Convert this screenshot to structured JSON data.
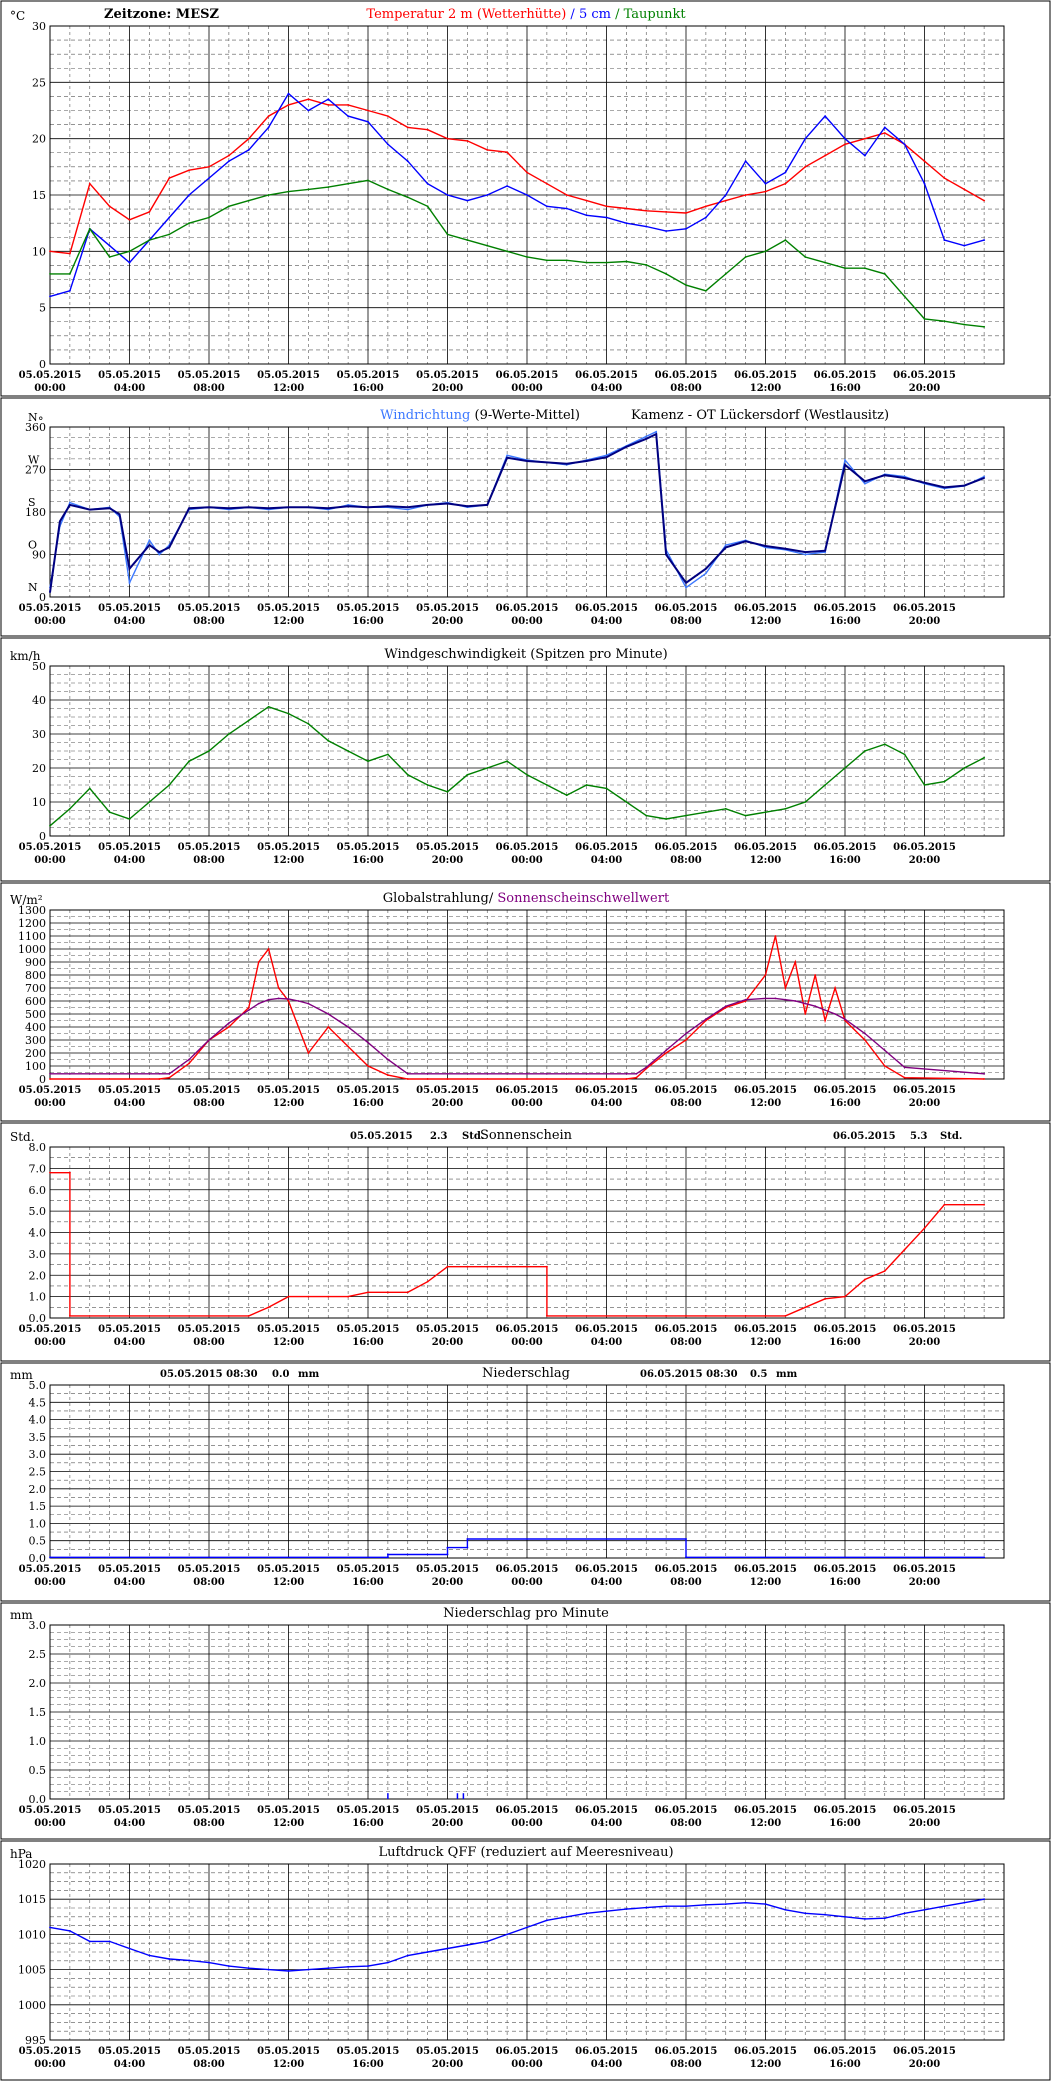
{
  "x_ticks": [
    {
      "date": "05.05.2015",
      "time": "00:00"
    },
    {
      "date": "05.05.2015",
      "time": "04:00"
    },
    {
      "date": "05.05.2015",
      "time": "08:00"
    },
    {
      "date": "05.05.2015",
      "time": "12:00"
    },
    {
      "date": "05.05.2015",
      "time": "16:00"
    },
    {
      "date": "05.05.2015",
      "time": "20:00"
    },
    {
      "date": "06.05.2015",
      "time": "00:00"
    },
    {
      "date": "06.05.2015",
      "time": "04:00"
    },
    {
      "date": "06.05.2015",
      "time": "08:00"
    },
    {
      "date": "06.05.2015",
      "time": "12:00"
    },
    {
      "date": "06.05.2015",
      "time": "16:00"
    },
    {
      "date": "06.05.2015",
      "time": "20:00"
    }
  ],
  "colors": {
    "red": "#ff0000",
    "blue": "#0000ff",
    "green": "#008000",
    "navy": "#000080",
    "lightblue": "#3c78ff",
    "purple": "#800080",
    "black": "#000000"
  },
  "chart_data": [
    {
      "id": "temp",
      "type": "line",
      "unit": "°C",
      "ylim": [
        0,
        30
      ],
      "yticks": [
        "0",
        "5",
        "10",
        "15",
        "20",
        "25",
        "30"
      ],
      "header_left": "Zeitzone: MESZ",
      "title_parts": [
        {
          "text": "Temperatur 2 m (Wetterhütte)",
          "color": "#ff0000"
        },
        {
          "text": " / ",
          "color": "#0000ff"
        },
        {
          "text": "5 cm",
          "color": "#0000ff"
        },
        {
          "text": " / ",
          "color": "#008000"
        },
        {
          "text": "Taupunkt",
          "color": "#008000"
        }
      ],
      "x_hours": [
        0,
        1,
        2,
        3,
        4,
        5,
        6,
        7,
        8,
        9,
        10,
        11,
        12,
        13,
        14,
        15,
        16,
        17,
        18,
        19,
        20,
        21,
        22,
        23,
        24,
        25,
        26,
        27,
        28,
        29,
        30,
        31,
        32,
        33,
        34,
        35,
        36,
        37,
        38,
        39,
        40,
        41,
        42,
        43,
        44,
        45,
        46,
        47
      ],
      "series": [
        {
          "name": "Temperatur 2 m (Wetterhütte)",
          "color": "#ff0000",
          "values": [
            10,
            9.8,
            16,
            14,
            12.8,
            13.5,
            16.5,
            17.2,
            17.5,
            18.5,
            20,
            22,
            23,
            23.5,
            23,
            23,
            22.5,
            22,
            21,
            20.8,
            20,
            19.8,
            19,
            18.8,
            17,
            16,
            15,
            14.5,
            14,
            13.8,
            13.6,
            13.5,
            13.4,
            14,
            14.5,
            15,
            15.3,
            16,
            17.5,
            18.5,
            19.5,
            20,
            20.5,
            19.5,
            18,
            16.5,
            15.5,
            14.5
          ]
        },
        {
          "name": "5 cm",
          "color": "#0000ff",
          "values": [
            6,
            6.5,
            12,
            10.5,
            9,
            11,
            13,
            15,
            16.5,
            18,
            19,
            21,
            24,
            22.5,
            23.5,
            22,
            21.5,
            19.5,
            18,
            16,
            15,
            14.5,
            15,
            15.8,
            15,
            14,
            13.8,
            13.2,
            13,
            12.5,
            12.2,
            11.8,
            12,
            13,
            15,
            18,
            16,
            17,
            20,
            22,
            20,
            18.5,
            21,
            19.5,
            16,
            11,
            10.5,
            11
          ]
        },
        {
          "name": "Taupunkt",
          "color": "#008000",
          "values": [
            8,
            8,
            12,
            9.5,
            10,
            11,
            11.5,
            12.5,
            13,
            14,
            14.5,
            15,
            15.3,
            15.5,
            15.7,
            16,
            16.3,
            15.5,
            14.8,
            14,
            11.5,
            11,
            10.5,
            10,
            9.5,
            9.2,
            9.2,
            9,
            9,
            9.1,
            8.8,
            8,
            7,
            6.5,
            8,
            9.5,
            10,
            11,
            9.5,
            9,
            8.5,
            8.5,
            8,
            6,
            4,
            3.8,
            3.5,
            3.3
          ]
        }
      ]
    },
    {
      "id": "winddir",
      "type": "line",
      "ylim": [
        0,
        360
      ],
      "yticks": [
        "0",
        "90",
        "180",
        "270",
        "360"
      ],
      "y_compass": [
        "N",
        "O",
        "S",
        "W",
        "N"
      ],
      "unit_extra": "°",
      "title_parts": [
        {
          "text": "Windrichtung",
          "color": "#3c78ff"
        },
        {
          "text": " (9-Werte-Mittel)",
          "color": "#000000"
        }
      ],
      "title_right": "Kamenz - OT Lückersdorf (Westlausitz)",
      "x_hours": [
        0,
        0.5,
        1,
        2,
        3,
        3.5,
        4,
        5,
        5.5,
        6,
        7,
        8,
        9,
        10,
        11,
        12,
        13,
        14,
        15,
        16,
        17,
        18,
        19,
        20,
        21,
        22,
        23,
        24,
        25,
        26,
        27,
        28,
        29,
        30,
        30.5,
        31,
        32,
        33,
        34,
        35,
        36,
        37,
        38,
        39,
        40,
        41,
        42,
        43,
        44,
        45,
        46,
        47
      ],
      "series": [
        {
          "name": "Windrichtung",
          "color": "#3c78ff",
          "values": [
            20,
            150,
            200,
            185,
            190,
            170,
            30,
            120,
            90,
            110,
            185,
            190,
            185,
            190,
            185,
            190,
            190,
            185,
            195,
            190,
            190,
            185,
            195,
            200,
            190,
            195,
            300,
            290,
            285,
            280,
            290,
            300,
            320,
            340,
            350,
            100,
            20,
            50,
            110,
            120,
            105,
            100,
            90,
            95,
            290,
            240,
            260,
            255,
            240,
            230,
            235,
            255
          ]
        },
        {
          "name": "9-Werte-Mittel",
          "color": "#000080",
          "values": [
            10,
            160,
            195,
            185,
            188,
            175,
            60,
            110,
            95,
            105,
            188,
            190,
            188,
            190,
            188,
            190,
            190,
            188,
            192,
            190,
            192,
            190,
            195,
            198,
            192,
            195,
            295,
            288,
            285,
            282,
            288,
            296,
            318,
            335,
            345,
            90,
            30,
            60,
            105,
            118,
            108,
            102,
            95,
            98,
            280,
            245,
            258,
            252,
            242,
            232,
            236,
            252
          ]
        }
      ]
    },
    {
      "id": "windspeed",
      "type": "line",
      "unit": "km/h",
      "ylim": [
        0,
        50
      ],
      "yticks": [
        "0",
        "10",
        "20",
        "30",
        "40",
        "50"
      ],
      "title_parts": [
        {
          "text": "Windgeschwindigkeit (Spitzen pro Minute)",
          "color": "#000000"
        }
      ],
      "x_hours": [
        0,
        1,
        2,
        3,
        4,
        5,
        6,
        7,
        8,
        9,
        10,
        11,
        12,
        13,
        14,
        15,
        16,
        17,
        18,
        19,
        20,
        21,
        22,
        23,
        24,
        25,
        26,
        27,
        28,
        29,
        30,
        31,
        32,
        33,
        34,
        35,
        36,
        37,
        38,
        39,
        40,
        41,
        42,
        43,
        44,
        45,
        46,
        47
      ],
      "series": [
        {
          "name": "Windgeschwindigkeit",
          "color": "#008000",
          "values": [
            3,
            8,
            14,
            7,
            5,
            10,
            15,
            22,
            25,
            30,
            34,
            38,
            36,
            33,
            28,
            25,
            22,
            24,
            18,
            15,
            13,
            18,
            20,
            22,
            18,
            15,
            12,
            15,
            14,
            10,
            6,
            5,
            6,
            7,
            8,
            6,
            7,
            8,
            10,
            15,
            20,
            25,
            27,
            24,
            15,
            16,
            20,
            23
          ]
        }
      ]
    },
    {
      "id": "radiation",
      "type": "line",
      "unit": "W/m²",
      "ylim": [
        0,
        1300
      ],
      "yticks": [
        "0",
        "100",
        "200",
        "300",
        "400",
        "500",
        "600",
        "700",
        "800",
        "900",
        "1000",
        "1100",
        "1200",
        "1300"
      ],
      "title_parts": [
        {
          "text": "Globalstrahlung/",
          "color": "#000000"
        },
        {
          "text": " Sonnenscheinschwellwert",
          "color": "#800080"
        }
      ],
      "x_hours": [
        0,
        5.5,
        6,
        7,
        8,
        9,
        10,
        10.5,
        11,
        11.5,
        12,
        12.5,
        13,
        14,
        15,
        16,
        17,
        18,
        19,
        20,
        24,
        29,
        29.5,
        30,
        31,
        32,
        33,
        34,
        35,
        36,
        36.5,
        37,
        37.5,
        38,
        38.5,
        39,
        39.5,
        40,
        41,
        42,
        43,
        47
      ],
      "series": [
        {
          "name": "Globalstrahlung",
          "color": "#ff0000",
          "values": [
            0,
            0,
            10,
            120,
            300,
            400,
            550,
            900,
            1000,
            700,
            600,
            400,
            200,
            400,
            250,
            100,
            30,
            0,
            0,
            0,
            0,
            0,
            10,
            80,
            200,
            300,
            450,
            550,
            600,
            800,
            1100,
            700,
            900,
            500,
            800,
            450,
            700,
            450,
            300,
            100,
            10,
            0
          ]
        },
        {
          "name": "Sonnenscheinschwellwert",
          "color": "#800080",
          "values": [
            40,
            40,
            40,
            150,
            300,
            430,
            530,
            580,
            610,
            620,
            615,
            600,
            580,
            500,
            400,
            280,
            150,
            40,
            40,
            40,
            40,
            40,
            40,
            90,
            220,
            350,
            460,
            560,
            610,
            620,
            620,
            610,
            600,
            580,
            560,
            530,
            500,
            460,
            350,
            220,
            90,
            40
          ]
        }
      ]
    },
    {
      "id": "sunshine",
      "type": "line",
      "unit": "Std.",
      "ylim": [
        0,
        8
      ],
      "yticks": [
        "0.0",
        "1.0",
        "2.0",
        "3.0",
        "4.0",
        "5.0",
        "6.0",
        "7.0",
        "8.0"
      ],
      "title_parts": [
        {
          "text": "Sonnenschein",
          "color": "#000000"
        }
      ],
      "annotations": [
        {
          "date": "05.05.2015",
          "value": "2.3",
          "unit": "Std."
        },
        {
          "date": "06.05.2015",
          "value": "5.3",
          "unit": "Std."
        }
      ],
      "x_hours": [
        0,
        1,
        1,
        10,
        11,
        12,
        13,
        14,
        15,
        16,
        17,
        18,
        19,
        20,
        21,
        22,
        23,
        24,
        25,
        25,
        30,
        31,
        32,
        33,
        34,
        35,
        36,
        37,
        38,
        39,
        40,
        41,
        42,
        43,
        44,
        45,
        46,
        47
      ],
      "series": [
        {
          "name": "Sonnenschein",
          "color": "#ff0000",
          "values": [
            6.8,
            6.8,
            0.1,
            0.1,
            0.5,
            1.0,
            1.0,
            1.0,
            1.0,
            1.2,
            1.2,
            1.2,
            1.7,
            2.4,
            2.4,
            2.4,
            2.4,
            2.4,
            2.4,
            0.1,
            0.1,
            0.1,
            0.1,
            0.1,
            0.1,
            0.1,
            0.1,
            0.1,
            0.5,
            0.9,
            1.0,
            1.8,
            2.2,
            3.2,
            4.2,
            5.3,
            5.3,
            5.3
          ]
        }
      ]
    },
    {
      "id": "precip",
      "type": "line",
      "unit": "mm",
      "ylim": [
        0,
        5
      ],
      "yticks": [
        "0.0",
        "0.5",
        "1.0",
        "1.5",
        "2.0",
        "2.5",
        "3.0",
        "3.5",
        "4.0",
        "4.5",
        "5.0"
      ],
      "title_parts": [
        {
          "text": "Niederschlag",
          "color": "#000000"
        }
      ],
      "annotations": [
        {
          "date": "05.05.2015 08:30",
          "value": "0.0",
          "unit": "mm"
        },
        {
          "date": "06.05.2015 08:30",
          "value": "0.5",
          "unit": "mm"
        }
      ],
      "x_hours": [
        0,
        17,
        17,
        20,
        20,
        21,
        21,
        32,
        32,
        47
      ],
      "series": [
        {
          "name": "Niederschlag",
          "color": "#0000ff",
          "values": [
            0.02,
            0.02,
            0.1,
            0.1,
            0.3,
            0.3,
            0.55,
            0.55,
            0.02,
            0.02
          ]
        }
      ]
    },
    {
      "id": "precipmin",
      "type": "bar",
      "unit": "mm",
      "ylim": [
        0,
        3
      ],
      "yticks": [
        "0.0",
        "0.5",
        "1.0",
        "1.5",
        "2.0",
        "2.5",
        "3.0"
      ],
      "title_parts": [
        {
          "text": "Niederschlag pro Minute",
          "color": "#000000"
        }
      ],
      "x_hours": [
        17,
        20.5,
        20.8
      ],
      "series": [
        {
          "name": "Niederschlag pro Minute",
          "color": "#0000ff",
          "values": [
            0.1,
            0.1,
            0.1
          ]
        }
      ]
    },
    {
      "id": "pressure",
      "type": "line",
      "unit": "hPa",
      "ylim": [
        995,
        1020
      ],
      "yticks": [
        "995",
        "1000",
        "1005",
        "1010",
        "1015",
        "1020"
      ],
      "title_parts": [
        {
          "text": "Luftdruck QFF (reduziert auf Meeresniveau)",
          "color": "#000000"
        }
      ],
      "x_hours": [
        0,
        1,
        2,
        3,
        4,
        5,
        6,
        7,
        8,
        9,
        10,
        11,
        12,
        13,
        14,
        15,
        16,
        17,
        18,
        19,
        20,
        21,
        22,
        23,
        24,
        25,
        26,
        27,
        28,
        29,
        30,
        31,
        32,
        33,
        34,
        35,
        36,
        37,
        38,
        39,
        40,
        41,
        42,
        43,
        44,
        45,
        46,
        47
      ],
      "series": [
        {
          "name": "Luftdruck QFF",
          "color": "#0000ff",
          "values": [
            1011,
            1010.5,
            1009,
            1009,
            1008,
            1007,
            1006.5,
            1006.3,
            1006,
            1005.5,
            1005.2,
            1005,
            1004.8,
            1005,
            1005.2,
            1005.4,
            1005.5,
            1006,
            1007,
            1007.5,
            1008,
            1008.5,
            1009,
            1010,
            1011,
            1012,
            1012.5,
            1013,
            1013.3,
            1013.6,
            1013.8,
            1014,
            1014,
            1014.2,
            1014.3,
            1014.5,
            1014.3,
            1013.5,
            1013,
            1012.8,
            1012.5,
            1012.2,
            1012.3,
            1013,
            1013.5,
            1014,
            1014.5,
            1015
          ]
        }
      ]
    }
  ]
}
